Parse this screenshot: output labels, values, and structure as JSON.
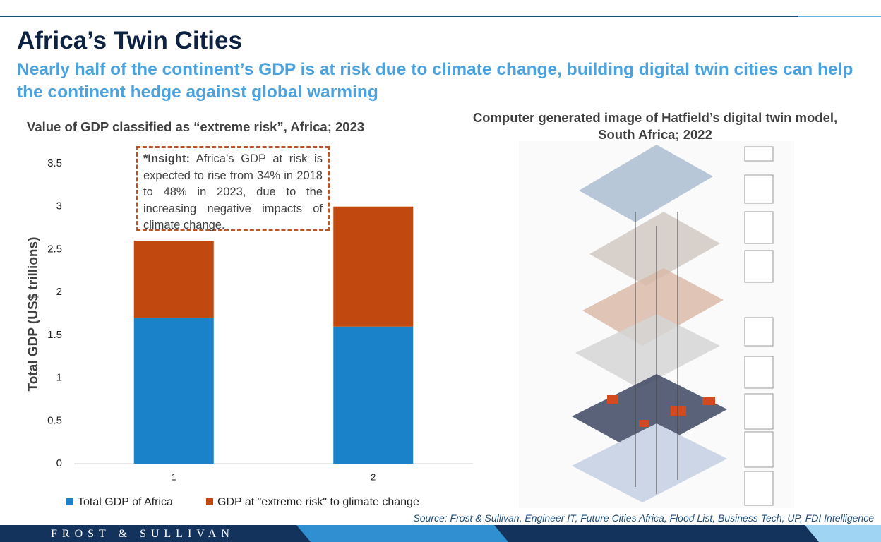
{
  "header": {
    "title": "Africa’s Twin Cities",
    "subtitle": "Nearly half of the continent’s GDP is at risk due to climate change, building digital twin cities can help the continent hedge against global warming"
  },
  "chart_data": {
    "type": "stacked-bar",
    "title": "Value of GDP classified as “extreme risk”, Africa; 2023",
    "y_label": "Total GDP (US$ trillions)",
    "categories": [
      "1",
      "2"
    ],
    "series": [
      {
        "name": "Total GDP of Africa",
        "color": "#1a82c8",
        "values": [
          1.7,
          1.6
        ]
      },
      {
        "name": "GDP at \"extreme risk\" to glimate change",
        "color": "#c1490f",
        "values": [
          0.9,
          1.4
        ]
      }
    ],
    "ylim": [
      0,
      3.5
    ],
    "yticks": [
      0,
      0.5,
      1,
      1.5,
      2,
      2.5,
      3,
      3.5
    ],
    "legend": "bottom"
  },
  "insight": {
    "label": "*Insight:",
    "text": "Africa’s GDP at risk is expected to rise from 34% in 2018 to 48% in 2023, due to the increasing negative impacts of climate change."
  },
  "image": {
    "title": "Computer  generated image of Hatfield’s digital twin model, South Africa; 2022"
  },
  "source": "Source: Frost & Sullivan, Engineer IT, Future Cities Africa, Flood List, Business Tech, UP, FDI Intelligence",
  "footer": {
    "brand": "FROST & SULLIVAN"
  }
}
